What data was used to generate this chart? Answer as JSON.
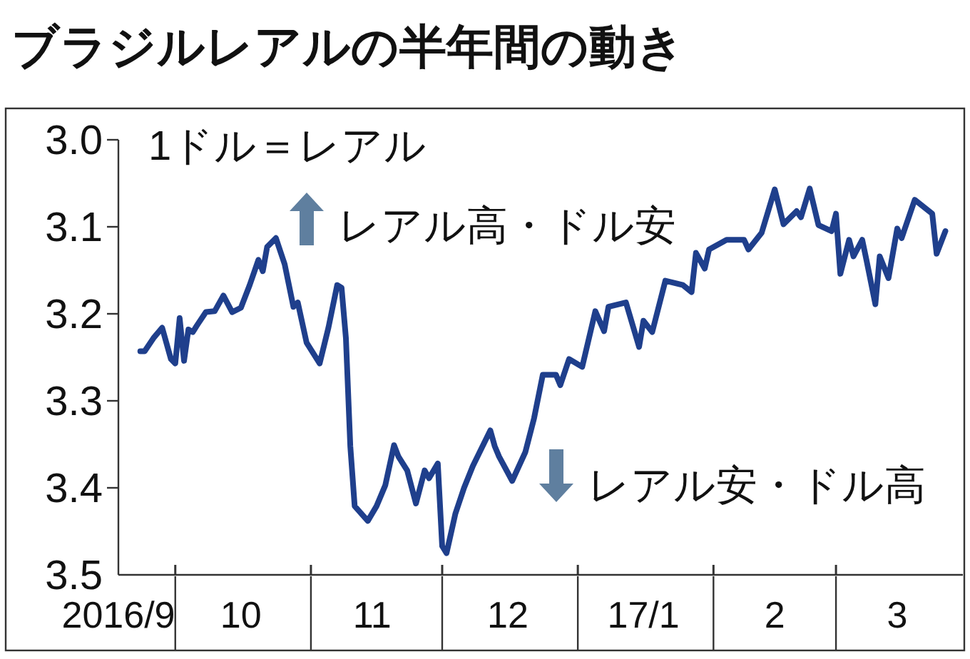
{
  "chart_data": {
    "type": "line",
    "title": "ブラジルレアルの半年間の動き",
    "ylabel": "1ドル＝レアル",
    "x": [
      "2016-09-23",
      "2016-09-24",
      "2016-09-26",
      "2016-09-28",
      "2016-09-30",
      "2016-10-01",
      "2016-10-02",
      "2016-10-03",
      "2016-10-04",
      "2016-10-05",
      "2016-10-06",
      "2016-10-08",
      "2016-10-10",
      "2016-10-12",
      "2016-10-14",
      "2016-10-16",
      "2016-10-18",
      "2016-10-20",
      "2016-10-21",
      "2016-10-22",
      "2016-10-24",
      "2016-10-26",
      "2016-10-28",
      "2016-10-29",
      "2016-10-31",
      "2016-11-03",
      "2016-11-05",
      "2016-11-07",
      "2016-11-08",
      "2016-11-09",
      "2016-11-10",
      "2016-11-11",
      "2016-11-14",
      "2016-11-16",
      "2016-11-18",
      "2016-11-20",
      "2016-11-21",
      "2016-11-23",
      "2016-11-25",
      "2016-11-27",
      "2016-11-28",
      "2016-11-30",
      "2016-12-01",
      "2016-12-02",
      "2016-12-04",
      "2016-12-06",
      "2016-12-08",
      "2016-12-12",
      "2016-12-13",
      "2016-12-14",
      "2016-12-17",
      "2016-12-20",
      "2016-12-22",
      "2016-12-24",
      "2016-12-27",
      "2016-12-28",
      "2016-12-30",
      "2017-01-02",
      "2017-01-05",
      "2017-01-07",
      "2017-01-08",
      "2017-01-12",
      "2017-01-15",
      "2017-01-16",
      "2017-01-18",
      "2017-01-21",
      "2017-01-25",
      "2017-01-27",
      "2017-01-28",
      "2017-01-30",
      "2017-01-31",
      "2017-02-04",
      "2017-02-08",
      "2017-02-09",
      "2017-02-12",
      "2017-02-15",
      "2017-02-17",
      "2017-02-20",
      "2017-02-21",
      "2017-02-23",
      "2017-02-25",
      "2017-02-28",
      "2017-03-01",
      "2017-03-02",
      "2017-03-04",
      "2017-03-05",
      "2017-03-07",
      "2017-03-08",
      "2017-03-10",
      "2017-03-11",
      "2017-03-13",
      "2017-03-15",
      "2017-03-16",
      "2017-03-19",
      "2017-03-23",
      "2017-03-24",
      "2017-03-26"
    ],
    "values": [
      3.243,
      3.243,
      3.228,
      3.216,
      3.252,
      3.257,
      3.205,
      3.254,
      3.218,
      3.221,
      3.213,
      3.198,
      3.197,
      3.179,
      3.198,
      3.193,
      3.167,
      3.138,
      3.151,
      3.123,
      3.113,
      3.143,
      3.192,
      3.187,
      3.233,
      3.257,
      3.216,
      3.167,
      3.17,
      3.228,
      3.352,
      3.421,
      3.438,
      3.421,
      3.397,
      3.351,
      3.364,
      3.38,
      3.418,
      3.38,
      3.389,
      3.372,
      3.467,
      3.475,
      3.43,
      3.4,
      3.375,
      3.334,
      3.352,
      3.364,
      3.392,
      3.359,
      3.32,
      3.27,
      3.27,
      3.282,
      3.252,
      3.261,
      3.197,
      3.22,
      3.192,
      3.187,
      3.238,
      3.208,
      3.221,
      3.162,
      3.167,
      3.175,
      3.13,
      3.148,
      3.126,
      3.115,
      3.115,
      3.126,
      3.107,
      3.057,
      3.097,
      3.082,
      3.089,
      3.056,
      3.098,
      3.105,
      3.085,
      3.154,
      3.115,
      3.134,
      3.115,
      3.139,
      3.189,
      3.134,
      3.159,
      3.102,
      3.113,
      3.069,
      3.085,
      3.131,
      3.105
    ],
    "color": "#1f3f8c",
    "line_style": "solid",
    "xlim": [
      "2016-09-18",
      "2017-03-30"
    ],
    "xticks": [
      {
        "value": "2016-09-18",
        "label": "2016/9"
      },
      {
        "value": "2016-10-01",
        "label": null
      },
      {
        "value": "2016-10-16",
        "label": "10"
      },
      {
        "value": "2016-11-01",
        "label": null
      },
      {
        "value": "2016-11-15",
        "label": "11"
      },
      {
        "value": "2016-12-01",
        "label": null
      },
      {
        "value": "2016-12-16",
        "label": "12"
      },
      {
        "value": "2017-01-01",
        "label": null
      },
      {
        "value": "2017-01-16",
        "label": "17/1"
      },
      {
        "value": "2017-02-01",
        "label": null
      },
      {
        "value": "2017-02-15",
        "label": "2"
      },
      {
        "value": "2017-03-01",
        "label": null
      },
      {
        "value": "2017-03-15",
        "label": "3"
      }
    ],
    "ylim": [
      3.5,
      3.0
    ],
    "yticks": [
      {
        "value": 3.0,
        "label": "3.0"
      },
      {
        "value": 3.1,
        "label": "3.1"
      },
      {
        "value": 3.2,
        "label": "3.2"
      },
      {
        "value": 3.3,
        "label": "3.3"
      },
      {
        "value": 3.4,
        "label": "3.4"
      },
      {
        "value": 3.5,
        "label": "3.5"
      }
    ],
    "annotations": [
      "レアル高・ドル安",
      "レアル安・ドル高"
    ]
  }
}
